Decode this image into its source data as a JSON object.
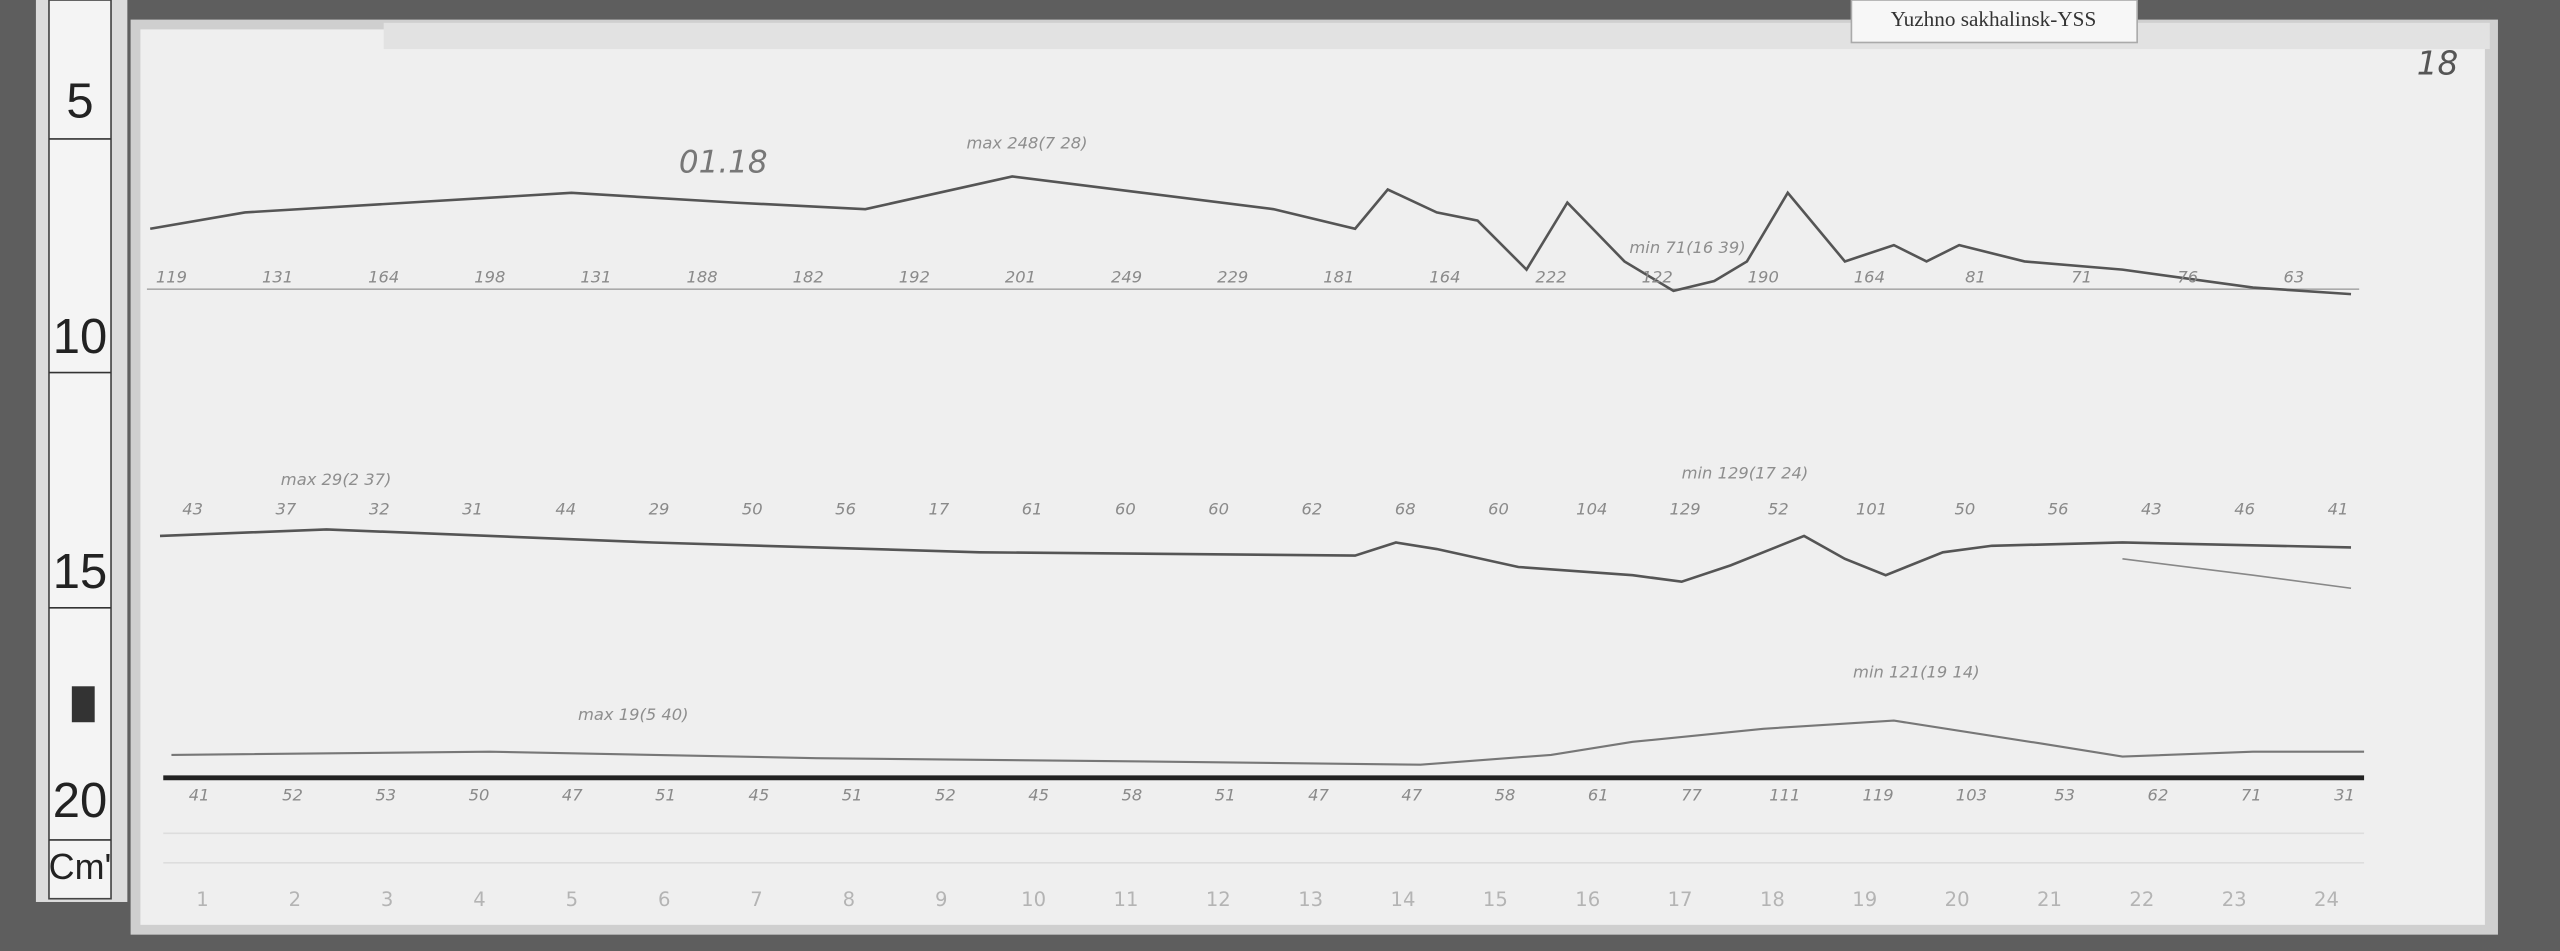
{
  "header": {
    "station": "Yuzhno sakhalinsk-YSS",
    "sheet_number": "18",
    "date_mark": "01.18"
  },
  "ruler": [
    "5",
    "10",
    "15",
    "20",
    "Cm'"
  ],
  "rows": {
    "top": [
      "119",
      "131",
      "164",
      "198",
      "131",
      "188",
      "182",
      "192",
      "201",
      "249",
      "229",
      "181",
      "164",
      "222",
      "122",
      "190",
      "164",
      "81",
      "71",
      "76",
      "63"
    ],
    "middle": [
      "43",
      "37",
      "32",
      "31",
      "44",
      "29",
      "50",
      "56",
      "17",
      "61",
      "60",
      "60",
      "62",
      "68",
      "60",
      "104",
      "129",
      "52",
      "101",
      "50",
      "56",
      "43",
      "46",
      "41"
    ],
    "bottom": [
      "41",
      "52",
      "53",
      "50",
      "47",
      "51",
      "45",
      "51",
      "52",
      "45",
      "58",
      "51",
      "47",
      "47",
      "58",
      "61",
      "77",
      "111",
      "119",
      "103",
      "53",
      "62",
      "71",
      "31"
    ]
  },
  "annotations": [
    "max 248(7 28)",
    "min 71(16 39)",
    "max 29(2 37)",
    "min 129(17 24)",
    "max 19(5 40)",
    "min 121(19 14)"
  ],
  "hours": [
    "1",
    "2",
    "3",
    "4",
    "5",
    "6",
    "7",
    "8",
    "9",
    "10",
    "11",
    "12",
    "13",
    "14",
    "15",
    "16",
    "17",
    "18",
    "19",
    "20",
    "21",
    "22",
    "23",
    "24"
  ]
}
